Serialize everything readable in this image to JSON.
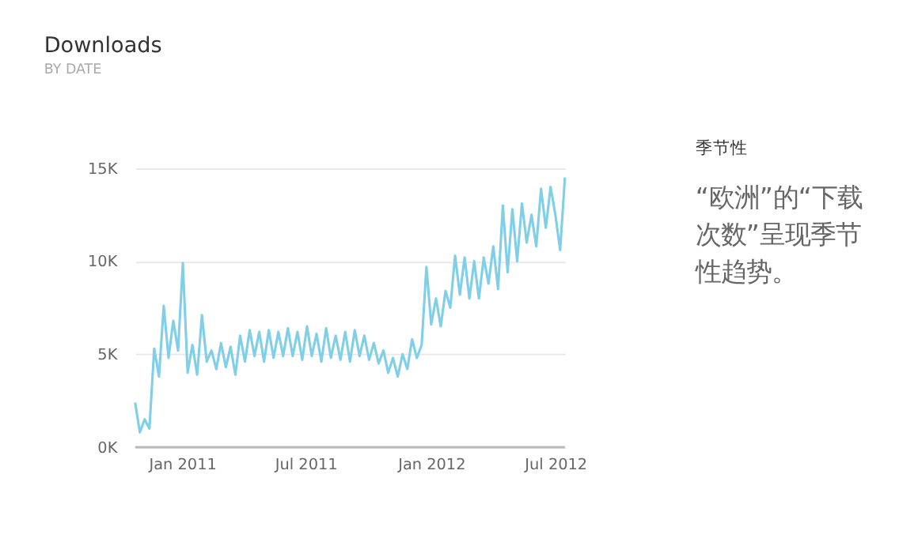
{
  "chart_data": [
    {
      "type": "line",
      "title": "Downloads",
      "subtitle": "BY DATE",
      "x": [
        "2010-10-24",
        "2010-10-31",
        "2010-11-07",
        "2010-11-14",
        "2010-11-21",
        "2010-11-28",
        "2010-12-05",
        "2010-12-12",
        "2010-12-19",
        "2010-12-26",
        "2011-01-02",
        "2011-01-09",
        "2011-01-16",
        "2011-01-23",
        "2011-01-30",
        "2011-02-06",
        "2011-02-13",
        "2011-02-20",
        "2011-02-27",
        "2011-03-06",
        "2011-03-13",
        "2011-03-20",
        "2011-03-27",
        "2011-04-03",
        "2011-04-10",
        "2011-04-17",
        "2011-04-24",
        "2011-05-01",
        "2011-05-08",
        "2011-05-15",
        "2011-05-22",
        "2011-05-29",
        "2011-06-05",
        "2011-06-12",
        "2011-06-19",
        "2011-06-26",
        "2011-07-03",
        "2011-07-10",
        "2011-07-17",
        "2011-07-24",
        "2011-07-31",
        "2011-08-07",
        "2011-08-14",
        "2011-08-21",
        "2011-08-28",
        "2011-09-04",
        "2011-09-11",
        "2011-09-18",
        "2011-09-25",
        "2011-10-02",
        "2011-10-09",
        "2011-10-16",
        "2011-10-23",
        "2011-10-30",
        "2011-11-06",
        "2011-11-13",
        "2011-11-20",
        "2011-11-27",
        "2011-12-04",
        "2011-12-11",
        "2011-12-18",
        "2011-12-25",
        "2012-01-01",
        "2012-01-08",
        "2012-01-15",
        "2012-01-22",
        "2012-01-29",
        "2012-02-05",
        "2012-02-12",
        "2012-02-19",
        "2012-02-26",
        "2012-03-04",
        "2012-03-11",
        "2012-03-18",
        "2012-03-25",
        "2012-04-01",
        "2012-04-08",
        "2012-04-15",
        "2012-04-22",
        "2012-04-29",
        "2012-05-06",
        "2012-05-13",
        "2012-05-20",
        "2012-05-27",
        "2012-06-03",
        "2012-06-10",
        "2012-06-17",
        "2012-06-24",
        "2012-07-01",
        "2012-07-08",
        "2012-07-15"
      ],
      "series": [
        {
          "color": "#7fcfe9",
          "values": [
            2400,
            800,
            1500,
            1000,
            5300,
            3800,
            7600,
            4800,
            6800,
            5200,
            9900,
            4000,
            5500,
            3900,
            7100,
            4600,
            5200,
            4200,
            5600,
            4300,
            5400,
            3900,
            6000,
            4600,
            6300,
            4900,
            6200,
            4600,
            6300,
            4800,
            6200,
            4900,
            6400,
            4900,
            6200,
            4700,
            6500,
            4900,
            6100,
            4600,
            6400,
            4800,
            6000,
            4700,
            6200,
            4600,
            6300,
            4900,
            6000,
            4700,
            5600,
            4500,
            5200,
            4000,
            4800,
            3800,
            5000,
            4200,
            5800,
            4800,
            5500,
            9700,
            6600,
            8000,
            6500,
            8400,
            7500,
            10300,
            8200,
            10200,
            8000,
            10000,
            8000,
            10200,
            8800,
            10800,
            8500,
            13000,
            9400,
            12800,
            10000,
            13100,
            11000,
            12500,
            10800,
            13900,
            11800,
            14000,
            12500,
            10600,
            14500
          ]
        }
      ],
      "xlim": [
        "2010-10-24",
        "2012-07-15"
      ],
      "xticks": [
        {
          "value": "2011-01-01",
          "label": "Jan 2011"
        },
        {
          "value": "2011-07-01",
          "label": "Jul 2011"
        },
        {
          "value": "2012-01-01",
          "label": "Jan 2012"
        },
        {
          "value": "2012-07-01",
          "label": "Jul 2012"
        }
      ],
      "ylim": [
        0,
        15000
      ],
      "yticks": [
        {
          "value": 0,
          "label": "0K"
        },
        {
          "value": 5000,
          "label": "5K"
        },
        {
          "value": 10000,
          "label": "10K"
        },
        {
          "value": 15000,
          "label": "15K"
        }
      ],
      "grid": "y"
    },
    {
      "type": "other",
      "title": "季节性",
      "annotations": [
        "“欧洲”的“下载次数”呈现季节性趋势。"
      ]
    }
  ]
}
